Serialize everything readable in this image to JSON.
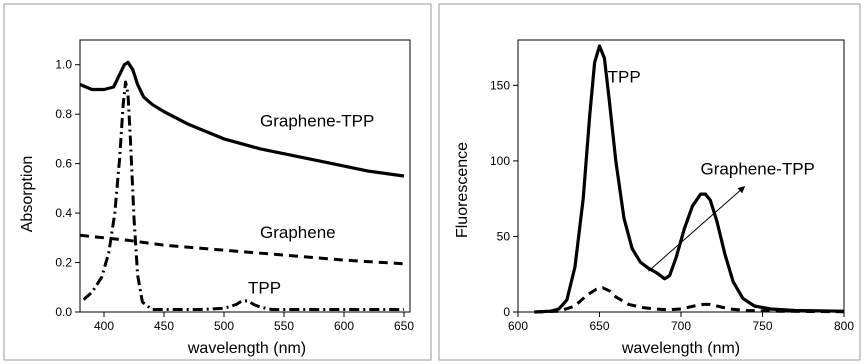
{
  "chart_data": [
    {
      "type": "line",
      "xlabel": "wavelength (nm)",
      "ylabel": "Absorption",
      "xlim": [
        380,
        655
      ],
      "ylim": [
        0.0,
        1.1
      ],
      "xticks": [
        "400",
        "450",
        "500",
        "550",
        "600",
        "650"
      ],
      "yticks": [
        "0.0",
        "0.2",
        "0.4",
        "0.6",
        "0.8",
        "1.0"
      ],
      "grid": false,
      "series": [
        {
          "name": "Graphene-TPP",
          "style": "solid",
          "x": [
            380,
            390,
            400,
            408,
            413,
            417,
            420,
            424,
            428,
            433,
            440,
            450,
            470,
            500,
            530,
            560,
            590,
            620,
            650
          ],
          "y": [
            0.92,
            0.9,
            0.9,
            0.91,
            0.96,
            1.0,
            1.01,
            0.98,
            0.92,
            0.87,
            0.84,
            0.81,
            0.76,
            0.7,
            0.66,
            0.63,
            0.6,
            0.57,
            0.55
          ]
        },
        {
          "name": "Graphene",
          "style": "dashed",
          "x": [
            380,
            420,
            450,
            500,
            550,
            600,
            650
          ],
          "y": [
            0.31,
            0.29,
            0.27,
            0.25,
            0.23,
            0.21,
            0.195
          ]
        },
        {
          "name": "TPP",
          "style": "dashdot",
          "x": [
            383,
            390,
            398,
            404,
            409,
            413,
            416,
            418,
            420,
            422,
            425,
            428,
            432,
            440,
            460,
            480,
            500,
            510,
            515,
            520,
            525,
            530,
            540,
            560,
            590,
            620,
            650
          ],
          "y": [
            0.05,
            0.08,
            0.14,
            0.24,
            0.4,
            0.62,
            0.84,
            0.93,
            0.88,
            0.7,
            0.38,
            0.15,
            0.04,
            0.01,
            0.01,
            0.01,
            0.015,
            0.03,
            0.045,
            0.045,
            0.03,
            0.02,
            0.01,
            0.01,
            0.01,
            0.01,
            0.01
          ]
        }
      ],
      "annotations": [
        {
          "text": "Graphene-TPP",
          "x": 530,
          "y": 0.75
        },
        {
          "text": "Graphene",
          "x": 530,
          "y": 0.3
        },
        {
          "text": "TPP",
          "x": 520,
          "y": 0.075
        }
      ]
    },
    {
      "type": "line",
      "xlabel": "wavelength (nm)",
      "ylabel": "Fluorescence",
      "xlim": [
        600,
        800
      ],
      "ylim": [
        0,
        180
      ],
      "xticks": [
        "600",
        "650",
        "700",
        "750",
        "800"
      ],
      "yticks": [
        "0",
        "50",
        "100",
        "150"
      ],
      "grid": false,
      "series": [
        {
          "name": "TPP",
          "style": "solid",
          "x": [
            610,
            620,
            625,
            630,
            635,
            640,
            644,
            647,
            650,
            653,
            656,
            660,
            665,
            670,
            675,
            680,
            685,
            690,
            693,
            697,
            702,
            707,
            712,
            715,
            718,
            722,
            727,
            732,
            738,
            745,
            755,
            770,
            800
          ],
          "y": [
            0,
            0.5,
            2,
            8,
            30,
            75,
            130,
            165,
            176,
            168,
            140,
            100,
            62,
            42,
            33,
            29,
            26,
            22,
            24,
            36,
            55,
            70,
            78,
            78,
            74,
            60,
            38,
            20,
            9,
            4,
            2,
            1,
            0.5
          ]
        },
        {
          "name": "Graphene-TPP",
          "style": "dashed",
          "x": [
            610,
            625,
            635,
            642,
            648,
            652,
            656,
            660,
            668,
            676,
            684,
            692,
            700,
            708,
            714,
            718,
            722,
            730,
            740,
            760,
            780,
            800
          ],
          "y": [
            0,
            0.5,
            4,
            11,
            15,
            16,
            14,
            10,
            5,
            3,
            2,
            1.5,
            2,
            4,
            5,
            5,
            4,
            2,
            1,
            0.5,
            0.3,
            0.2
          ]
        }
      ],
      "annotations": [
        {
          "text": "TPP",
          "x": 655,
          "y": 152
        },
        {
          "text": "Graphene-TPP",
          "x": 712,
          "y": 91
        }
      ],
      "arrow": {
        "from": [
          680,
          27
        ],
        "to": [
          739,
          83
        ]
      }
    }
  ]
}
